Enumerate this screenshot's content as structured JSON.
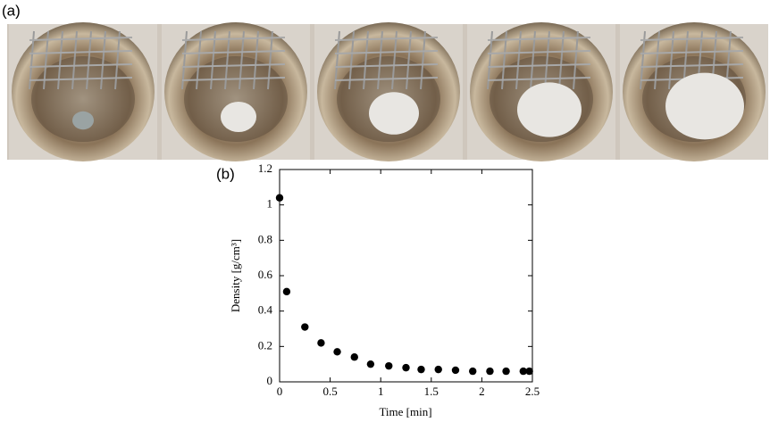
{
  "panel_labels": [
    "(a)",
    "(b)"
  ],
  "chart_data": {
    "type": "scatter",
    "x_label": "Time [min]",
    "y_label": "Density [g/cm³]",
    "x": [
      0,
      0.07,
      0.25,
      0.41,
      0.57,
      0.74,
      0.9,
      1.08,
      1.25,
      1.4,
      1.57,
      1.74,
      1.91,
      2.08,
      2.24,
      2.41,
      2.47
    ],
    "values": [
      1.04,
      0.51,
      0.31,
      0.22,
      0.17,
      0.14,
      0.1,
      0.09,
      0.08,
      0.07,
      0.07,
      0.066,
      0.06,
      0.06,
      0.06,
      0.06,
      0.06
    ],
    "color": "#000000",
    "xlim": [
      0,
      2.5
    ],
    "xticks": [
      0,
      0.5,
      1,
      1.5,
      2,
      2.5
    ],
    "ylim": [
      0,
      1.2
    ],
    "yticks": [
      0,
      0.2,
      0.4,
      0.6,
      0.8,
      1,
      1.2
    ]
  }
}
